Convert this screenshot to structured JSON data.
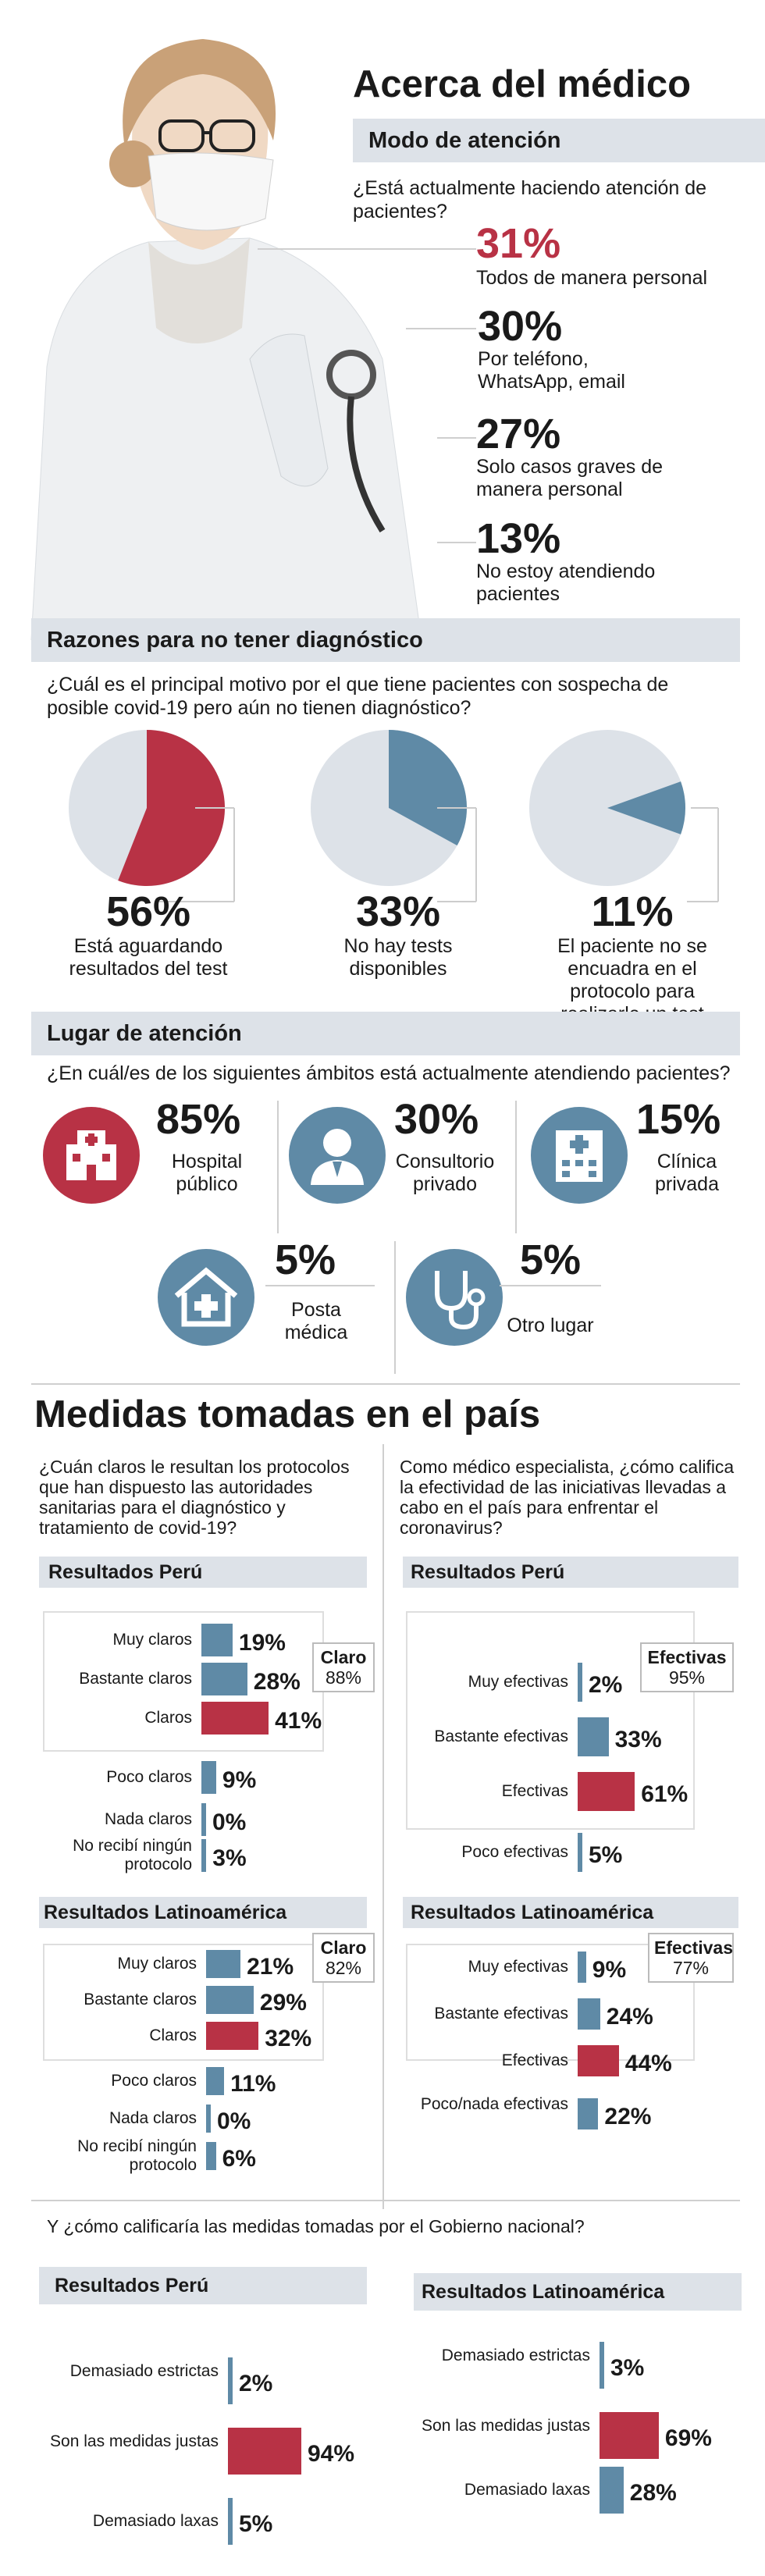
{
  "about": {
    "title": "Acerca del médico",
    "bar": "Modo de atención",
    "question": "¿Está actualmente haciendo atención de pacientes?",
    "items": [
      {
        "pct": "31%",
        "label": "Todos de manera personal"
      },
      {
        "pct": "30%",
        "label": "Por teléfono, WhatsApp, email"
      },
      {
        "pct": "27%",
        "label": "Solo casos graves de manera personal"
      },
      {
        "pct": "13%",
        "label": "No estoy atendiendo pacientes"
      }
    ]
  },
  "reasons": {
    "bar": "Razones para no tener diagnóstico",
    "question": "¿Cuál es el principal motivo por el que tiene pacientes con sospecha de posible covid-19 pero aún no tienen diagnóstico?",
    "items": [
      {
        "pct": "56%",
        "label": "Está aguardando resultados del test"
      },
      {
        "pct": "33%",
        "label": "No hay tests disponibles"
      },
      {
        "pct": "11%",
        "label": "El paciente no se encuadra en el protocolo para realizarle un test"
      }
    ]
  },
  "place": {
    "bar": "Lugar de atención",
    "question": "¿En cuál/es de los siguientes ámbitos está actualmente atendiendo pacientes?",
    "items": [
      {
        "pct": "85%",
        "label": "Hospital público",
        "icon": "hospital-icon"
      },
      {
        "pct": "30%",
        "label": "Consultorio privado",
        "icon": "doctor-icon"
      },
      {
        "pct": "15%",
        "label": "Clínica privada",
        "icon": "clinic-icon"
      },
      {
        "pct": "5%",
        "label": "Posta médica",
        "icon": "house-cross-icon"
      },
      {
        "pct": "5%",
        "label": "Otro lugar",
        "icon": "stethoscope-icon"
      }
    ]
  },
  "measures": {
    "title": "Medidas tomadas en el país",
    "left_question": "¿Cuán claros le resultan los protocolos que han dispuesto las autoridades sanitarias para el diagnóstico y tratamiento de covid-19?",
    "right_question": "Como médico especialista, ¿cómo califica la efectividad de las iniciativas llevadas a cabo en el país para enfrentar el coronavirus?",
    "peru_label": "Resultados Perú",
    "latam_label": "Resultados Latinoamérica",
    "left_peru_total": {
      "label": "Claro",
      "value": "88%"
    },
    "left_latam_total": {
      "label": "Claro",
      "value": "82%"
    },
    "right_peru_total": {
      "label": "Efectivas",
      "value": "95%"
    },
    "right_latam_total": {
      "label": "Efectivas",
      "value": "77%"
    },
    "gov_question": "Y ¿cómo calificaría las medidas tomadas por el Gobierno nacional?"
  },
  "chart_data": [
    {
      "type": "pie",
      "title": "Razones para no tener diagnóstico",
      "categories": [
        "Está aguardando resultados del test",
        "No hay tests disponibles",
        "El paciente no se encuadra en el protocolo para realizarle un test"
      ],
      "values": [
        56,
        33,
        11
      ]
    },
    {
      "type": "bar",
      "title": "Claridad de protocolos - Resultados Perú",
      "categories": [
        "Muy claros",
        "Bastante claros",
        "Claros",
        "Poco claros",
        "Nada claros",
        "No recibí ningún protocolo"
      ],
      "values": [
        19,
        28,
        41,
        9,
        0,
        3
      ]
    },
    {
      "type": "bar",
      "title": "Claridad de protocolos - Resultados Latinoamérica",
      "categories": [
        "Muy claros",
        "Bastante claros",
        "Claros",
        "Poco claros",
        "Nada claros",
        "No recibí ningún protocolo"
      ],
      "values": [
        21,
        29,
        32,
        11,
        0,
        6
      ]
    },
    {
      "type": "bar",
      "title": "Efectividad de iniciativas - Resultados Perú",
      "categories": [
        "Muy efectivas",
        "Bastante efectivas",
        "Efectivas",
        "Poco efectivas"
      ],
      "values": [
        2,
        33,
        61,
        5
      ]
    },
    {
      "type": "bar",
      "title": "Efectividad de iniciativas - Resultados Latinoamérica",
      "categories": [
        "Muy efectivas",
        "Bastante efectivas",
        "Efectivas",
        "Poco/nada efectivas"
      ],
      "values": [
        9,
        24,
        44,
        22
      ]
    },
    {
      "type": "bar",
      "title": "Medidas del Gobierno - Resultados Perú",
      "categories": [
        "Demasiado estrictas",
        "Son las medidas justas",
        "Demasiado laxas"
      ],
      "values": [
        2,
        94,
        5
      ]
    },
    {
      "type": "bar",
      "title": "Medidas del Gobierno - Resultados Latinoamérica",
      "categories": [
        "Demasiado estrictas",
        "Son las medidas justas",
        "Demasiado laxas"
      ],
      "values": [
        3,
        69,
        28
      ]
    }
  ]
}
